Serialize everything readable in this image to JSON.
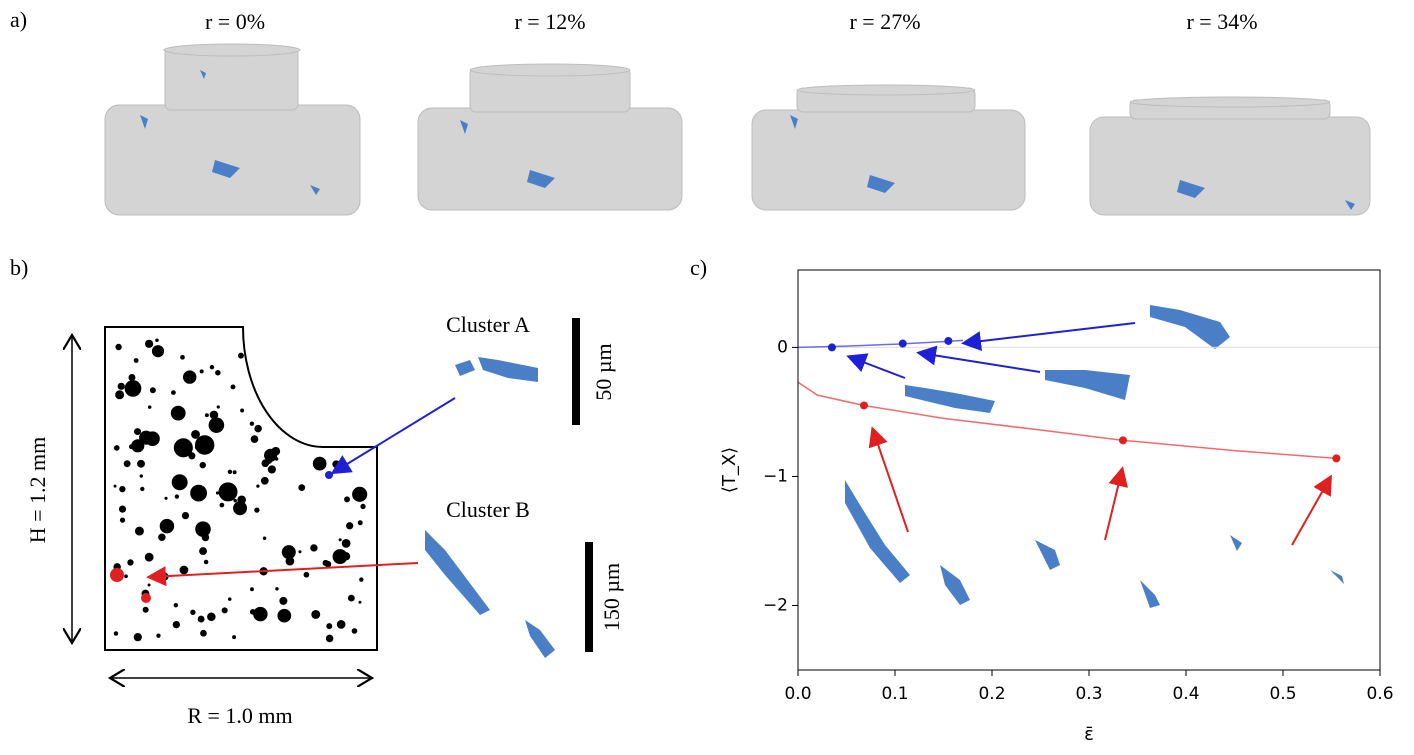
{
  "panel_a": {
    "label": "a)",
    "captions": [
      "r = 0%",
      "r = 12%",
      "r = 27%",
      "r = 34%"
    ]
  },
  "panel_b": {
    "label": "b)",
    "height_label": "H = 1.2 mm",
    "radius_label": "R = 1.0 mm",
    "cluster_a": {
      "title": "Cluster A",
      "scale": "50 µm"
    },
    "cluster_b": {
      "title": "Cluster B",
      "scale": "150 µm"
    }
  },
  "panel_c": {
    "label": "c)"
  },
  "chart_data": {
    "type": "line",
    "xlabel": "ε̄",
    "ylabel": "⟨T_X⟩",
    "xlim": [
      0,
      0.6
    ],
    "ylim": [
      -2.5,
      0.6
    ],
    "xticks": [
      {
        "value": 0,
        "label": "0.0"
      },
      {
        "value": 0.1,
        "label": "0.1"
      },
      {
        "value": 0.2,
        "label": "0.2"
      },
      {
        "value": 0.3,
        "label": "0.3"
      },
      {
        "value": 0.4,
        "label": "0.4"
      },
      {
        "value": 0.5,
        "label": "0.5"
      },
      {
        "value": 0.6,
        "label": "0.6"
      }
    ],
    "yticks": [
      {
        "value": -2,
        "label": "−2"
      },
      {
        "value": -1,
        "label": "−1"
      },
      {
        "value": 0,
        "label": "0"
      }
    ],
    "series": [
      {
        "color": "#6b6bf2",
        "marker": false,
        "x": [
          0,
          0.05,
          0.1,
          0.15,
          0.17
        ],
        "values": [
          0,
          0.01,
          0.025,
          0.045,
          0.055
        ]
      },
      {
        "color": "#f26b6b",
        "marker": false,
        "x": [
          0,
          0.02,
          0.068,
          0.15,
          0.25,
          0.335,
          0.45,
          0.555
        ],
        "values": [
          -0.27,
          -0.37,
          -0.45,
          -0.55,
          -0.64,
          -0.72,
          -0.8,
          -0.86
        ]
      },
      {
        "color": "#1f1fd6",
        "marker": true,
        "x": [
          0.035,
          0.108,
          0.155
        ],
        "values": [
          0,
          0.03,
          0.05
        ]
      },
      {
        "color": "#e02020",
        "marker": true,
        "x": [
          0.068,
          0.335,
          0.555
        ],
        "values": [
          -0.45,
          -0.72,
          -0.86
        ]
      }
    ]
  }
}
